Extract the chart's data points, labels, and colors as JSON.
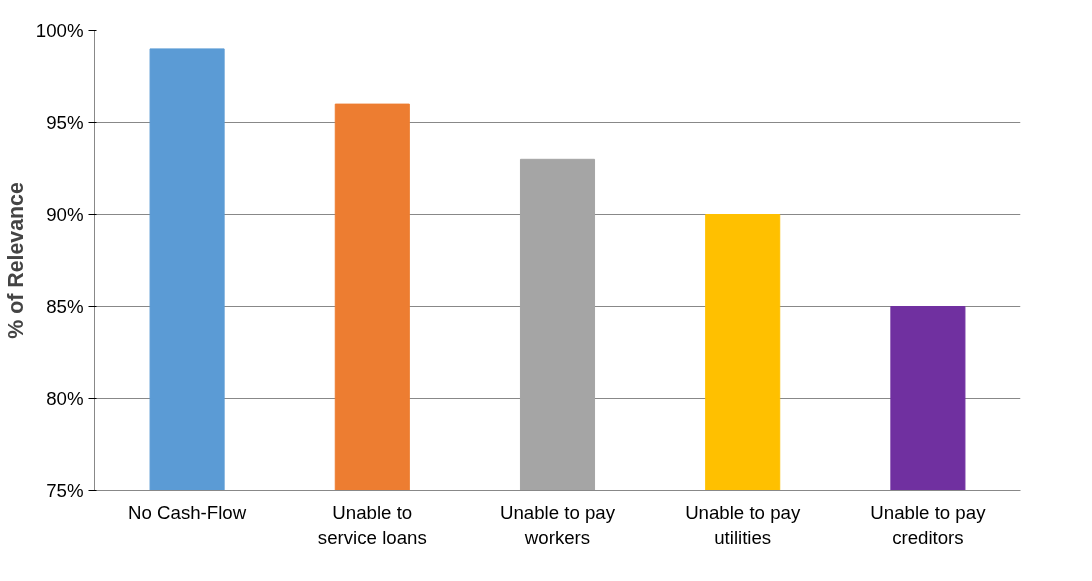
{
  "chart_data": {
    "type": "bar",
    "ylabel": "% of Relevance",
    "categories": [
      "No Cash-Flow",
      "Unable to service loans",
      "Unable to pay workers",
      "Unable to pay utilities",
      "Unable to pay creditors"
    ],
    "values": [
      99,
      96,
      93,
      90,
      85
    ],
    "colors": [
      "#5b9bd5",
      "#ed7d31",
      "#a5a5a5",
      "#ffc000",
      "#7030a0"
    ],
    "ylim": [
      75,
      100
    ],
    "yticks": [
      {
        "value": 75,
        "label": "75%"
      },
      {
        "value": 80,
        "label": "80%"
      },
      {
        "value": 85,
        "label": "85%"
      },
      {
        "value": 90,
        "label": "90%"
      },
      {
        "value": 95,
        "label": "95%"
      },
      {
        "value": 100,
        "label": "100%"
      }
    ],
    "grid": "y"
  }
}
